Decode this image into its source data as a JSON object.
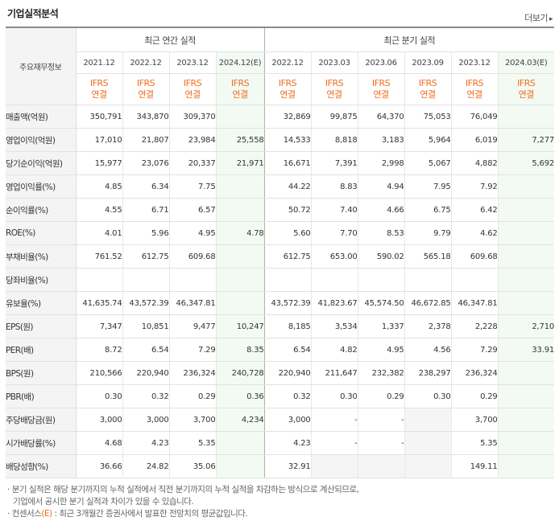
{
  "title": "기업실적분석",
  "more_label": "더보기",
  "more_arrow": "▸",
  "header": {
    "corner": "주요재무정보",
    "annual_label": "최근 연간 실적",
    "quarter_label": "최근 분기 실적",
    "annual_periods": [
      "2021.12",
      "2022.12",
      "2023.12",
      "2024.12(E)"
    ],
    "quarter_periods": [
      "2022.12",
      "2023.03",
      "2023.06",
      "2023.09",
      "2023.12",
      "2024.03(E)"
    ],
    "ifrs_top": "IFRS",
    "ifrs_bottom": "연결"
  },
  "rows": [
    {
      "label": "매출액(억원)",
      "values": [
        "350,791",
        "343,870",
        "309,370",
        "",
        "32,869",
        "99,875",
        "64,370",
        "75,053",
        "76,049",
        ""
      ]
    },
    {
      "label": "영업이익(억원)",
      "values": [
        "17,010",
        "21,807",
        "23,984",
        "25,558",
        "14,533",
        "8,818",
        "3,183",
        "5,964",
        "6,019",
        "7,277"
      ]
    },
    {
      "label": "당기순이익(억원)",
      "values": [
        "15,977",
        "23,076",
        "20,337",
        "21,971",
        "16,671",
        "7,391",
        "2,998",
        "5,067",
        "4,882",
        "5,692"
      ]
    },
    {
      "label": "영업이익률(%)",
      "values": [
        "4.85",
        "6.34",
        "7.75",
        "",
        "44.22",
        "8.83",
        "4.94",
        "7.95",
        "7.92",
        ""
      ]
    },
    {
      "label": "순이익률(%)",
      "values": [
        "4.55",
        "6.71",
        "6.57",
        "",
        "50.72",
        "7.40",
        "4.66",
        "6.75",
        "6.42",
        ""
      ]
    },
    {
      "label": "ROE(%)",
      "values": [
        "4.01",
        "5.96",
        "4.95",
        "4.78",
        "5.60",
        "7.70",
        "8.53",
        "9.79",
        "4.62",
        ""
      ]
    },
    {
      "label": "부채비율(%)",
      "values": [
        "761.52",
        "612.75",
        "609.68",
        "",
        "612.75",
        "653.00",
        "590.02",
        "565.18",
        "609.68",
        ""
      ]
    },
    {
      "label": "당좌비율(%)",
      "values": [
        "",
        "",
        "",
        "",
        "",
        "",
        "",
        "",
        "",
        ""
      ]
    },
    {
      "label": "유보율(%)",
      "values": [
        "41,635.74",
        "43,572.39",
        "46,347.81",
        "",
        "43,572.39",
        "41,823.67",
        "45,574.50",
        "46,672.85",
        "46,347.81",
        ""
      ]
    },
    {
      "label": "EPS(원)",
      "values": [
        "7,347",
        "10,851",
        "9,477",
        "10,247",
        "8,185",
        "3,534",
        "1,337",
        "2,378",
        "2,228",
        "2,710"
      ]
    },
    {
      "label": "PER(배)",
      "values": [
        "8.72",
        "6.54",
        "7.29",
        "8.35",
        "6.54",
        "4.82",
        "4.95",
        "4.56",
        "7.29",
        "33.91"
      ]
    },
    {
      "label": "BPS(원)",
      "values": [
        "210,566",
        "220,940",
        "236,324",
        "240,728",
        "220,940",
        "211,647",
        "232,382",
        "238,297",
        "236,324",
        ""
      ]
    },
    {
      "label": "PBR(배)",
      "values": [
        "0.30",
        "0.32",
        "0.29",
        "0.36",
        "0.32",
        "0.30",
        "0.29",
        "0.30",
        "0.29",
        ""
      ]
    },
    {
      "label": "주당배당금(원)",
      "values": [
        "3,000",
        "3,000",
        "3,700",
        "4,234",
        "3,000",
        "-",
        "-",
        "",
        "3,700",
        ""
      ]
    },
    {
      "label": "시가배당률(%)",
      "values": [
        "4.68",
        "4.23",
        "5.35",
        "",
        "4.23",
        "-",
        "-",
        "",
        "5.35",
        ""
      ]
    },
    {
      "label": "배당성향(%)",
      "values": [
        "36.66",
        "24.82",
        "35.06",
        "",
        "32.91",
        "",
        "",
        "",
        "149.11",
        ""
      ]
    }
  ],
  "notes": {
    "line1": "분기 실적은 해당 분기까지의 누적 실적에서 직전 분기까지의 누적 실적을 차감하는 방식으로 계산되므로,",
    "line2": "기업에서 공시한 분기 실적과 차이가 있을 수 있습니다.",
    "line3_a": "컨센서스",
    "line3_e": "(E)",
    "line3_b": ": 최근 3개월간 증권사에서 발표한 전망치의 평균값입니다.",
    "bullet": "·"
  }
}
